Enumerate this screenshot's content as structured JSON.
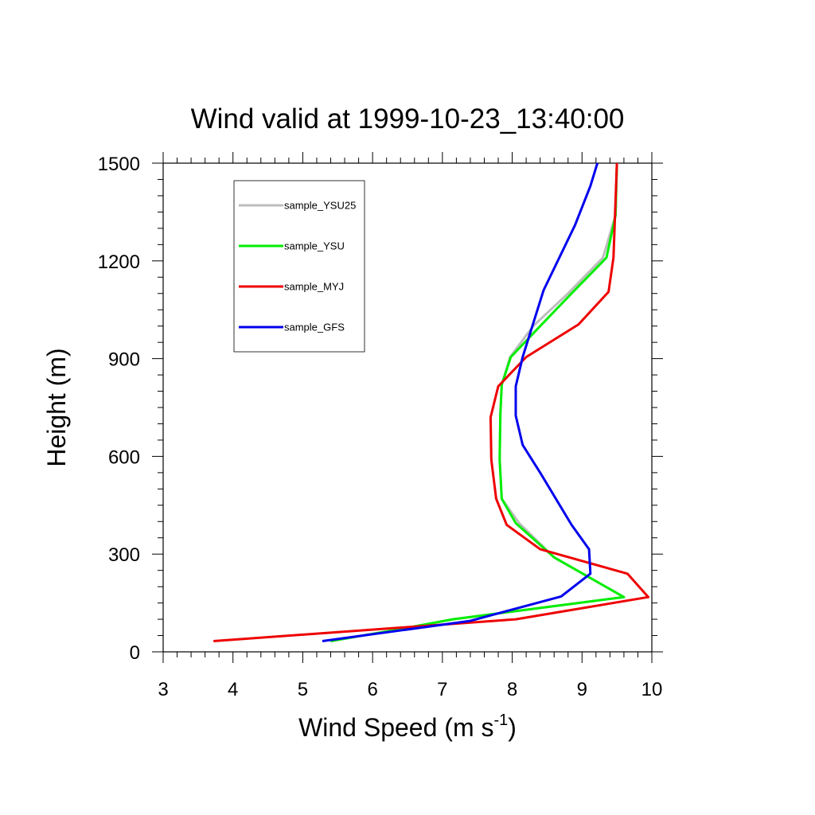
{
  "chart_data": {
    "type": "line",
    "title": "Wind valid at 1999-10-23_13:40:00",
    "xlabel": "Wind Speed (m s",
    "xlabel_sup": "-1",
    "xlabel_end": ")",
    "ylabel": "Height (m)",
    "xlim": [
      3,
      10
    ],
    "ylim": [
      0,
      1500
    ],
    "xticks": [
      3,
      4,
      5,
      6,
      7,
      8,
      9,
      10
    ],
    "yticks": [
      0,
      300,
      600,
      900,
      1200,
      1500
    ],
    "grid": false,
    "legend_position": "top-left",
    "series": [
      {
        "name": "sample_YSU25",
        "color": "#bdbdbd",
        "points": [
          [
            5.4,
            33
          ],
          [
            6.4,
            70
          ],
          [
            7.15,
            100
          ],
          [
            9.6,
            168
          ],
          [
            8.6,
            290
          ],
          [
            8.1,
            395
          ],
          [
            7.85,
            470
          ],
          [
            7.82,
            590
          ],
          [
            7.83,
            730
          ],
          [
            7.85,
            820
          ],
          [
            7.97,
            905
          ],
          [
            8.3,
            1000
          ],
          [
            8.8,
            1100
          ],
          [
            9.3,
            1210
          ],
          [
            9.48,
            1340
          ],
          [
            9.5,
            1500
          ]
        ]
      },
      {
        "name": "sample_YSU",
        "color": "#00ee00",
        "points": [
          [
            5.4,
            33
          ],
          [
            6.4,
            70
          ],
          [
            7.15,
            100
          ],
          [
            9.6,
            168
          ],
          [
            8.6,
            290
          ],
          [
            8.05,
            395
          ],
          [
            7.85,
            470
          ],
          [
            7.82,
            590
          ],
          [
            7.83,
            730
          ],
          [
            7.85,
            820
          ],
          [
            7.98,
            905
          ],
          [
            8.4,
            1000
          ],
          [
            8.85,
            1100
          ],
          [
            9.35,
            1210
          ],
          [
            9.48,
            1340
          ],
          [
            9.5,
            1500
          ]
        ]
      },
      {
        "name": "sample_MYJ",
        "color": "#ee0000",
        "points": [
          [
            3.72,
            33
          ],
          [
            8.05,
            100
          ],
          [
            9.95,
            168
          ],
          [
            9.65,
            240
          ],
          [
            8.4,
            315
          ],
          [
            7.92,
            390
          ],
          [
            7.77,
            470
          ],
          [
            7.7,
            590
          ],
          [
            7.69,
            720
          ],
          [
            7.8,
            815
          ],
          [
            8.2,
            905
          ],
          [
            8.95,
            1005
          ],
          [
            9.38,
            1105
          ],
          [
            9.45,
            1210
          ],
          [
            9.5,
            1500
          ]
        ]
      },
      {
        "name": "sample_GFS",
        "color": "#0000ee",
        "points": [
          [
            5.28,
            33
          ],
          [
            7.4,
            95
          ],
          [
            8.7,
            170
          ],
          [
            9.12,
            240
          ],
          [
            9.1,
            315
          ],
          [
            8.85,
            390
          ],
          [
            8.4,
            550
          ],
          [
            8.15,
            635
          ],
          [
            8.05,
            725
          ],
          [
            8.05,
            815
          ],
          [
            8.15,
            905
          ],
          [
            8.45,
            1110
          ],
          [
            8.9,
            1310
          ],
          [
            9.12,
            1430
          ],
          [
            9.22,
            1500
          ]
        ]
      }
    ]
  }
}
